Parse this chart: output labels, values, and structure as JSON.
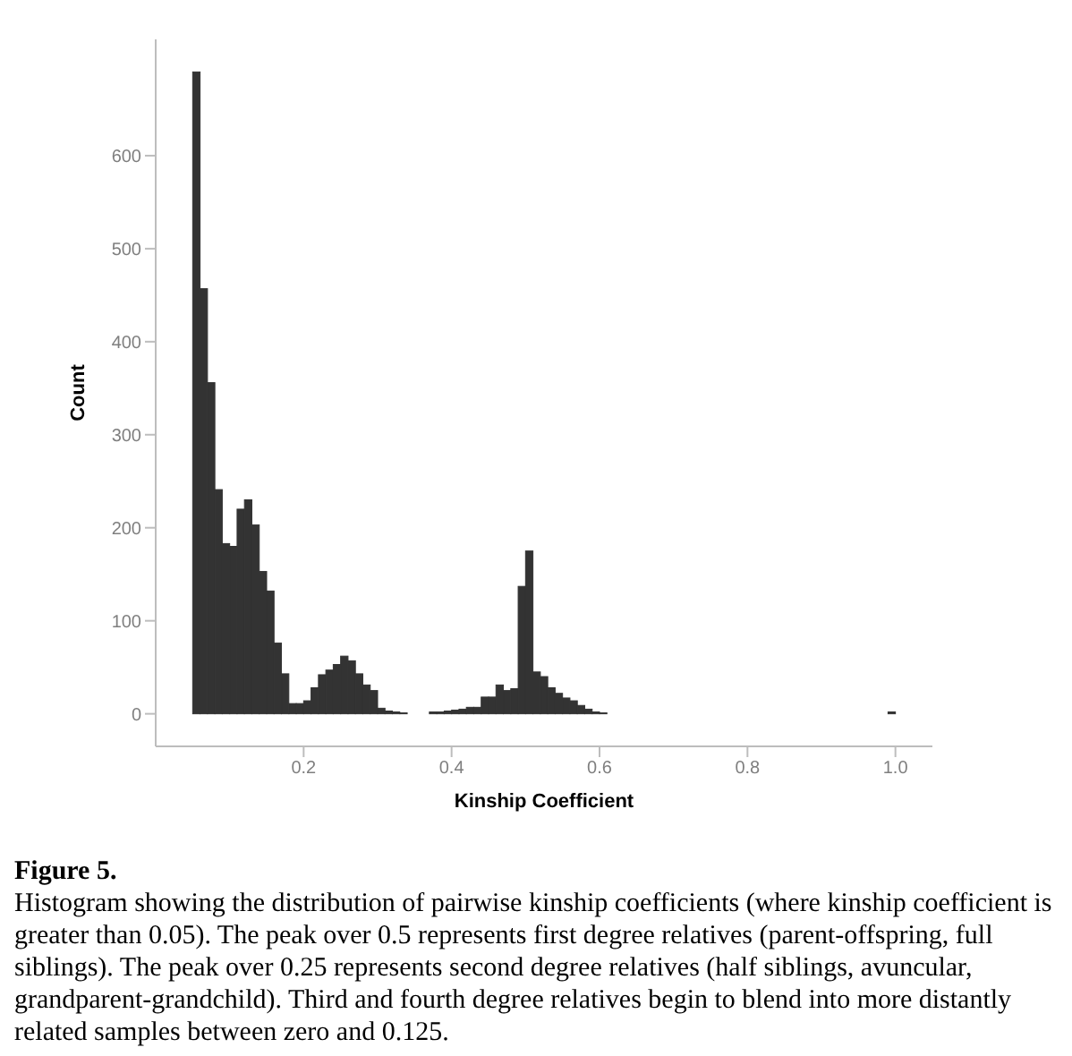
{
  "chart_data": {
    "type": "histogram",
    "xlabel": "Kinship Coefficient",
    "ylabel": "Count",
    "bins": [
      0.05,
      0.06,
      0.07,
      0.08,
      0.09,
      0.1,
      0.11,
      0.12,
      0.13,
      0.14,
      0.15,
      0.16,
      0.17,
      0.18,
      0.19,
      0.2,
      0.21,
      0.22,
      0.23,
      0.24,
      0.25,
      0.26,
      0.27,
      0.28,
      0.29,
      0.3,
      0.31,
      0.32,
      0.33,
      0.34,
      0.35,
      0.36,
      0.37,
      0.38,
      0.39,
      0.4,
      0.41,
      0.42,
      0.43,
      0.44,
      0.45,
      0.46,
      0.47,
      0.48,
      0.49,
      0.5,
      0.51,
      0.52,
      0.53,
      0.54,
      0.55,
      0.56,
      0.57,
      0.58,
      0.59,
      0.6,
      0.61,
      0.62,
      0.63,
      0.64,
      0.65,
      0.66,
      0.67,
      0.68,
      0.69,
      0.7,
      0.71,
      0.72,
      0.73,
      0.74,
      0.75,
      0.76,
      0.77,
      0.78,
      0.79,
      0.8,
      0.81,
      0.82,
      0.83,
      0.84,
      0.85,
      0.86,
      0.87,
      0.88,
      0.89,
      0.9,
      0.91,
      0.92,
      0.93,
      0.94,
      0.95,
      0.96,
      0.97,
      0.98,
      0.99,
      1.0
    ],
    "values": [
      690,
      457,
      356,
      241,
      183,
      180,
      220,
      230,
      203,
      153,
      132,
      76,
      43,
      11,
      11,
      14,
      28,
      42,
      47,
      53,
      62,
      57,
      43,
      31,
      25,
      6,
      3,
      2,
      1,
      0,
      0,
      0,
      2,
      2,
      3,
      4,
      5,
      7,
      7,
      18,
      18,
      31,
      25,
      27,
      137,
      175,
      45,
      40,
      28,
      22,
      17,
      14,
      9,
      5,
      2,
      1,
      0,
      0,
      0,
      0,
      0,
      0,
      0,
      0,
      0,
      0,
      0,
      0,
      0,
      0,
      0,
      0,
      0,
      0,
      0,
      0,
      0,
      0,
      0,
      0,
      0,
      0,
      0,
      0,
      0,
      0,
      0,
      0,
      0,
      0,
      0,
      0,
      0,
      0,
      2
    ],
    "color": "#333333",
    "xlim": [
      0,
      1.05
    ],
    "xticks": [
      0.2,
      0.4,
      0.6,
      0.8,
      {
        "value": 1,
        "label": "1.0"
      }
    ],
    "ylim": [
      -35,
      725
    ],
    "yticks": [
      0,
      100,
      200,
      300,
      400,
      500,
      600
    ],
    "grid": false,
    "annotations": [
      "Figure 5.",
      "Histogram showing the distribution of pairwise kinship coefficients (where kinship coefficient is greater than 0.05). The peak over 0.5 represents first degree relatives (parent-offspring, full siblings). The peak over 0.25 represents second degree relatives (half siblings, avuncular, grandparent-grandchild). Third and fourth degree relatives begin to blend into more distantly related samples between zero and 0.125."
    ]
  }
}
